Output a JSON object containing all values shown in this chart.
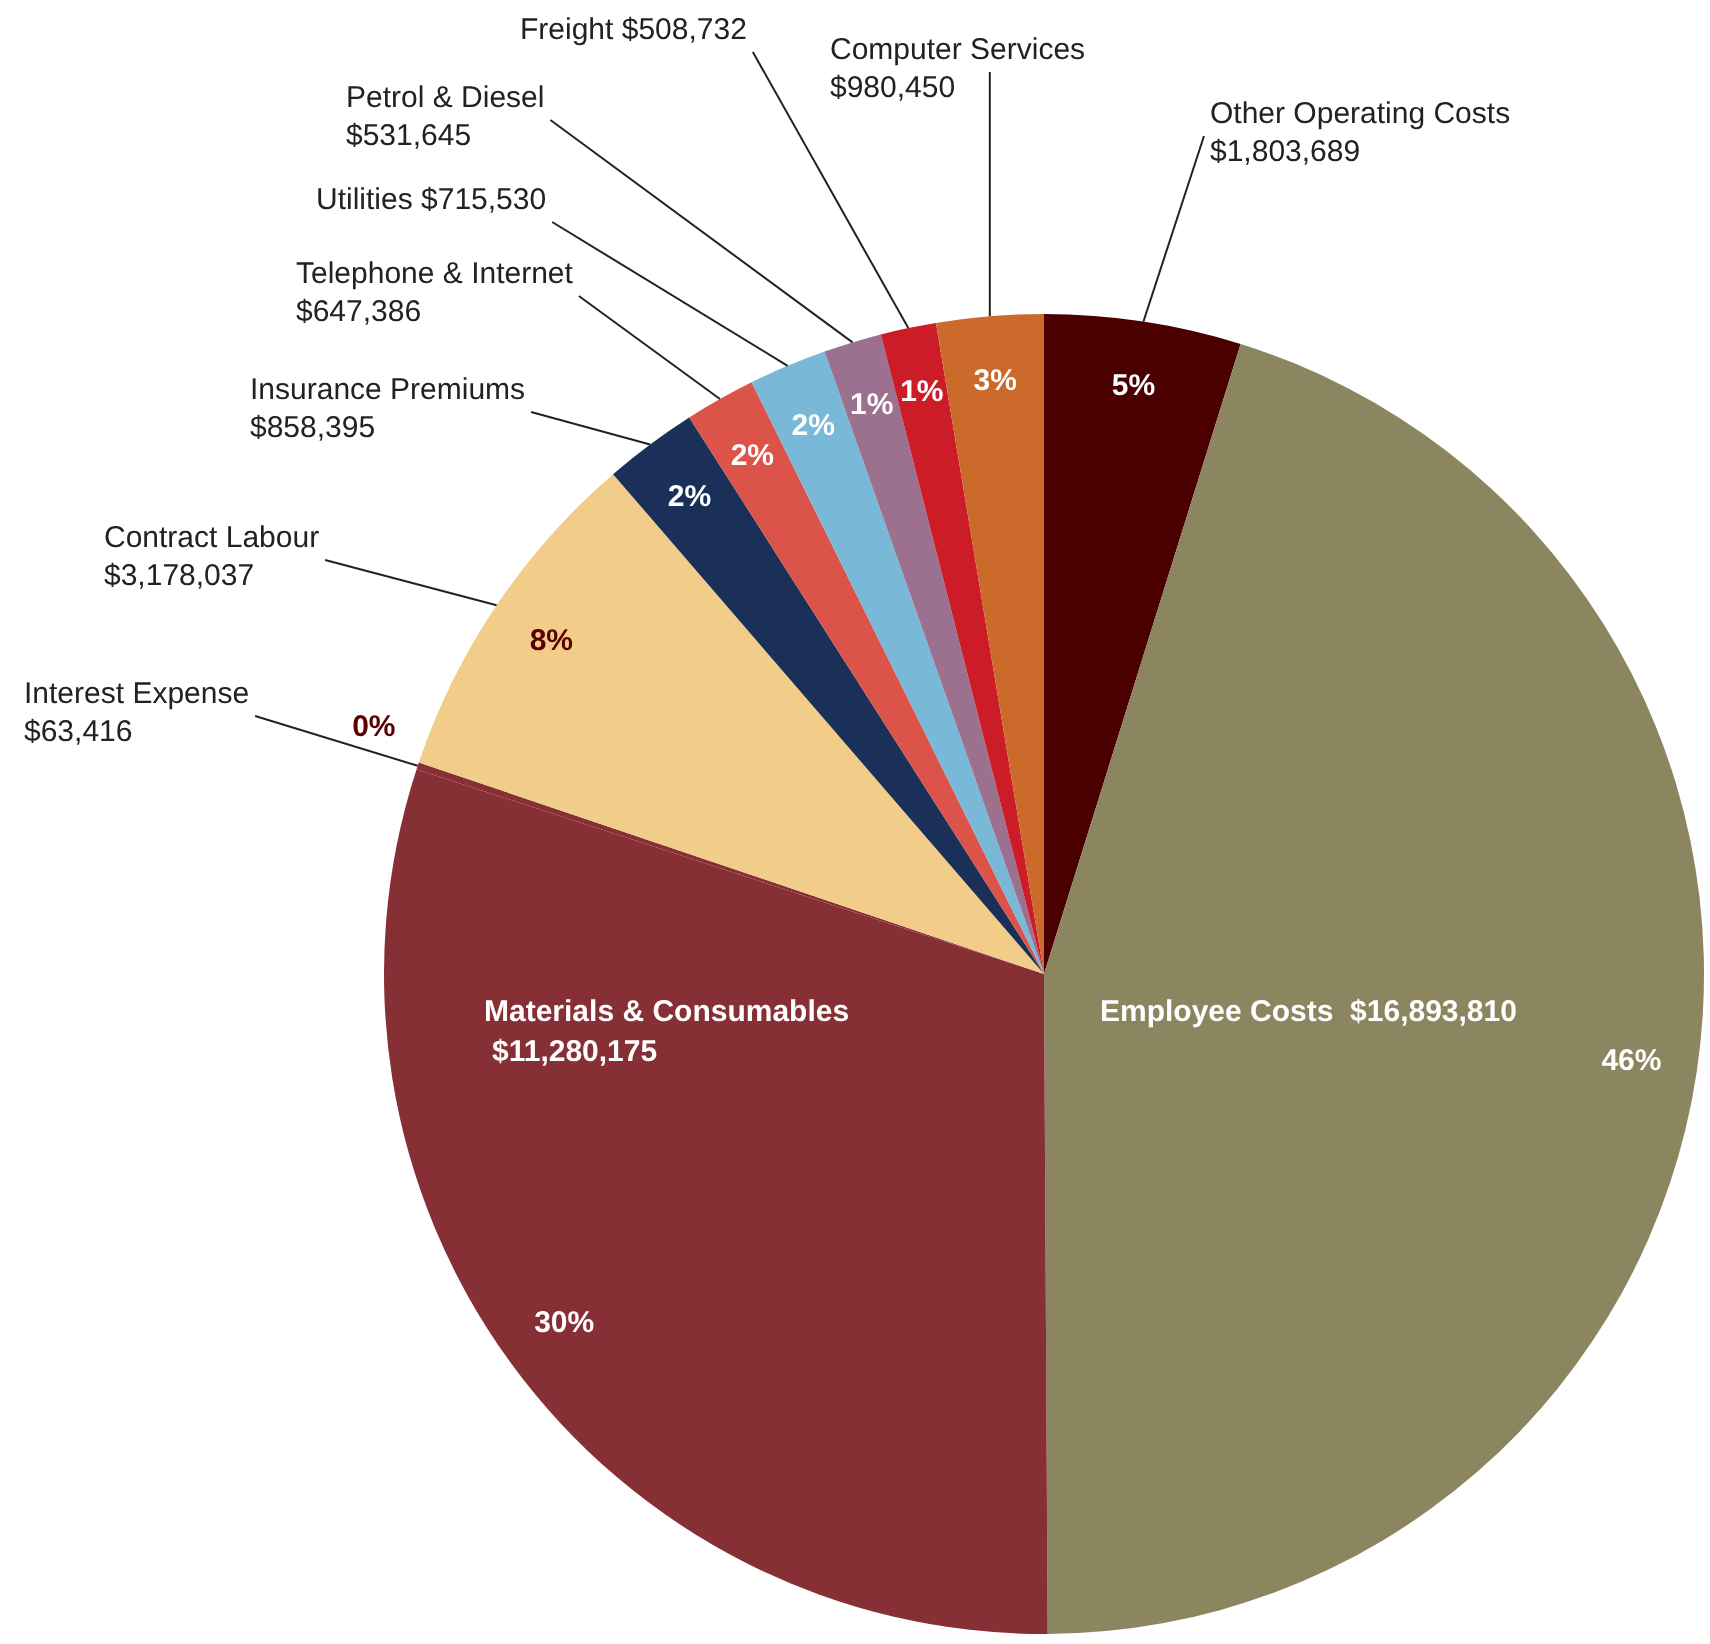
{
  "chart_data": {
    "type": "pie",
    "categories": [
      "Other Operating Costs",
      "Employee Costs",
      "Materials & Consumables",
      "Interest Expense",
      "Contract Labour",
      "Insurance Premiums",
      "Telephone & Internet",
      "Utilities",
      "Petrol & Diesel",
      "Freight",
      "Computer Services"
    ],
    "values": [
      1803689,
      16893810,
      11280175,
      63416,
      3178037,
      858395,
      647386,
      715530,
      531645,
      508732,
      980450
    ],
    "value_labels": [
      "$1,803,689",
      "$16,893,810",
      "$11,280,175",
      "$63,416",
      "$3,178,037",
      "$858,395",
      "$647,386",
      "$715,530",
      "$531,645",
      "$508,732",
      "$980,450"
    ],
    "colors": [
      "#4a0000",
      "#8b8560",
      "#862f35",
      "#862f35",
      "#f2cd8a",
      "#1a3059",
      "#dc5449",
      "#7ab8d8",
      "#9c7190",
      "#cc1c27",
      "#cc6a2b"
    ],
    "annotations": [
      {
        "text": "5%",
        "x": "Other Operating Costs"
      },
      {
        "text": "46%",
        "x": "Employee Costs"
      },
      {
        "text": "30%",
        "x": "Materials & Consumables"
      },
      {
        "text": "0%",
        "x": "Interest Expense"
      },
      {
        "text": "8%",
        "x": "Contract Labour"
      },
      {
        "text": "2%",
        "x": "Insurance Premiums"
      },
      {
        "text": "2%",
        "x": "Telephone & Internet"
      },
      {
        "text": "2%",
        "x": "Utilities"
      },
      {
        "text": "1%",
        "x": "Petrol & Diesel"
      },
      {
        "text": "1%",
        "x": "Freight"
      },
      {
        "text": "3%",
        "x": "Computer Services"
      }
    ],
    "legend": false
  }
}
